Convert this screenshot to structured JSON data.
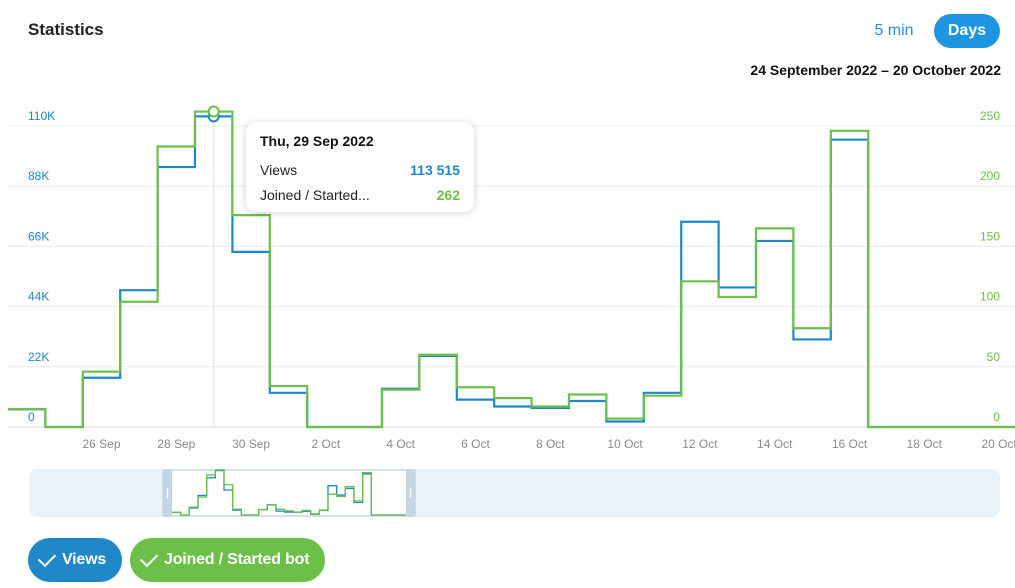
{
  "header": {
    "title": "Statistics",
    "btn_5min": "5 min",
    "btn_days": "Days",
    "date_range": "24 September 2022 – 20 October 2022"
  },
  "colors": {
    "views": "#1e88c8",
    "joined": "#6cc04a",
    "accent": "#1e95e0"
  },
  "legend": {
    "views": "Views",
    "joined": "Joined / Started bot"
  },
  "tooltip": {
    "date": "Thu, 29 Sep 2022",
    "label1": "Views",
    "value1": "113 515",
    "label2": "Joined / Started...",
    "value2": "262"
  },
  "chart_data": {
    "type": "line",
    "step": true,
    "grid": true,
    "x": [
      "24 Sep",
      "25 Sep",
      "26 Sep",
      "27 Sep",
      "28 Sep",
      "29 Sep",
      "30 Sep",
      "1 Oct",
      "2 Oct",
      "3 Oct",
      "4 Oct",
      "5 Oct",
      "6 Oct",
      "7 Oct",
      "8 Oct",
      "9 Oct",
      "10 Oct",
      "11 Oct",
      "12 Oct",
      "13 Oct",
      "14 Oct",
      "15 Oct",
      "16 Oct",
      "17 Oct",
      "18 Oct",
      "19 Oct",
      "20 Oct"
    ],
    "x_tick_labels": [
      "26 Sep",
      "28 Sep",
      "30 Sep",
      "2 Oct",
      "4 Oct",
      "6 Oct",
      "8 Oct",
      "10 Oct",
      "12 Oct",
      "14 Oct",
      "16 Oct",
      "18 Oct",
      "20 Oct"
    ],
    "y_left_ticks": [
      "0",
      "22K",
      "44K",
      "66K",
      "88K",
      "110K"
    ],
    "y_right_ticks": [
      "0",
      "50",
      "100",
      "150",
      "200",
      "250"
    ],
    "y_left_range": [
      0,
      110000
    ],
    "y_right_range": [
      0,
      250
    ],
    "series": [
      {
        "name": "Views",
        "axis": "left",
        "values": [
          6500,
          0,
          18000,
          50000,
          95000,
          113515,
          64000,
          12500,
          0,
          0,
          14000,
          26000,
          10000,
          7500,
          7000,
          9500,
          2000,
          12500,
          75000,
          51000,
          68000,
          32000,
          105000,
          0,
          0,
          0,
          0
        ]
      },
      {
        "name": "Joined / Started bot",
        "axis": "right",
        "values": [
          15,
          0,
          46,
          104,
          233,
          262,
          176,
          34,
          0,
          0,
          31,
          60,
          33,
          24,
          17,
          27,
          7,
          26,
          121,
          108,
          165,
          82,
          246,
          0,
          0,
          0,
          0
        ]
      }
    ]
  }
}
